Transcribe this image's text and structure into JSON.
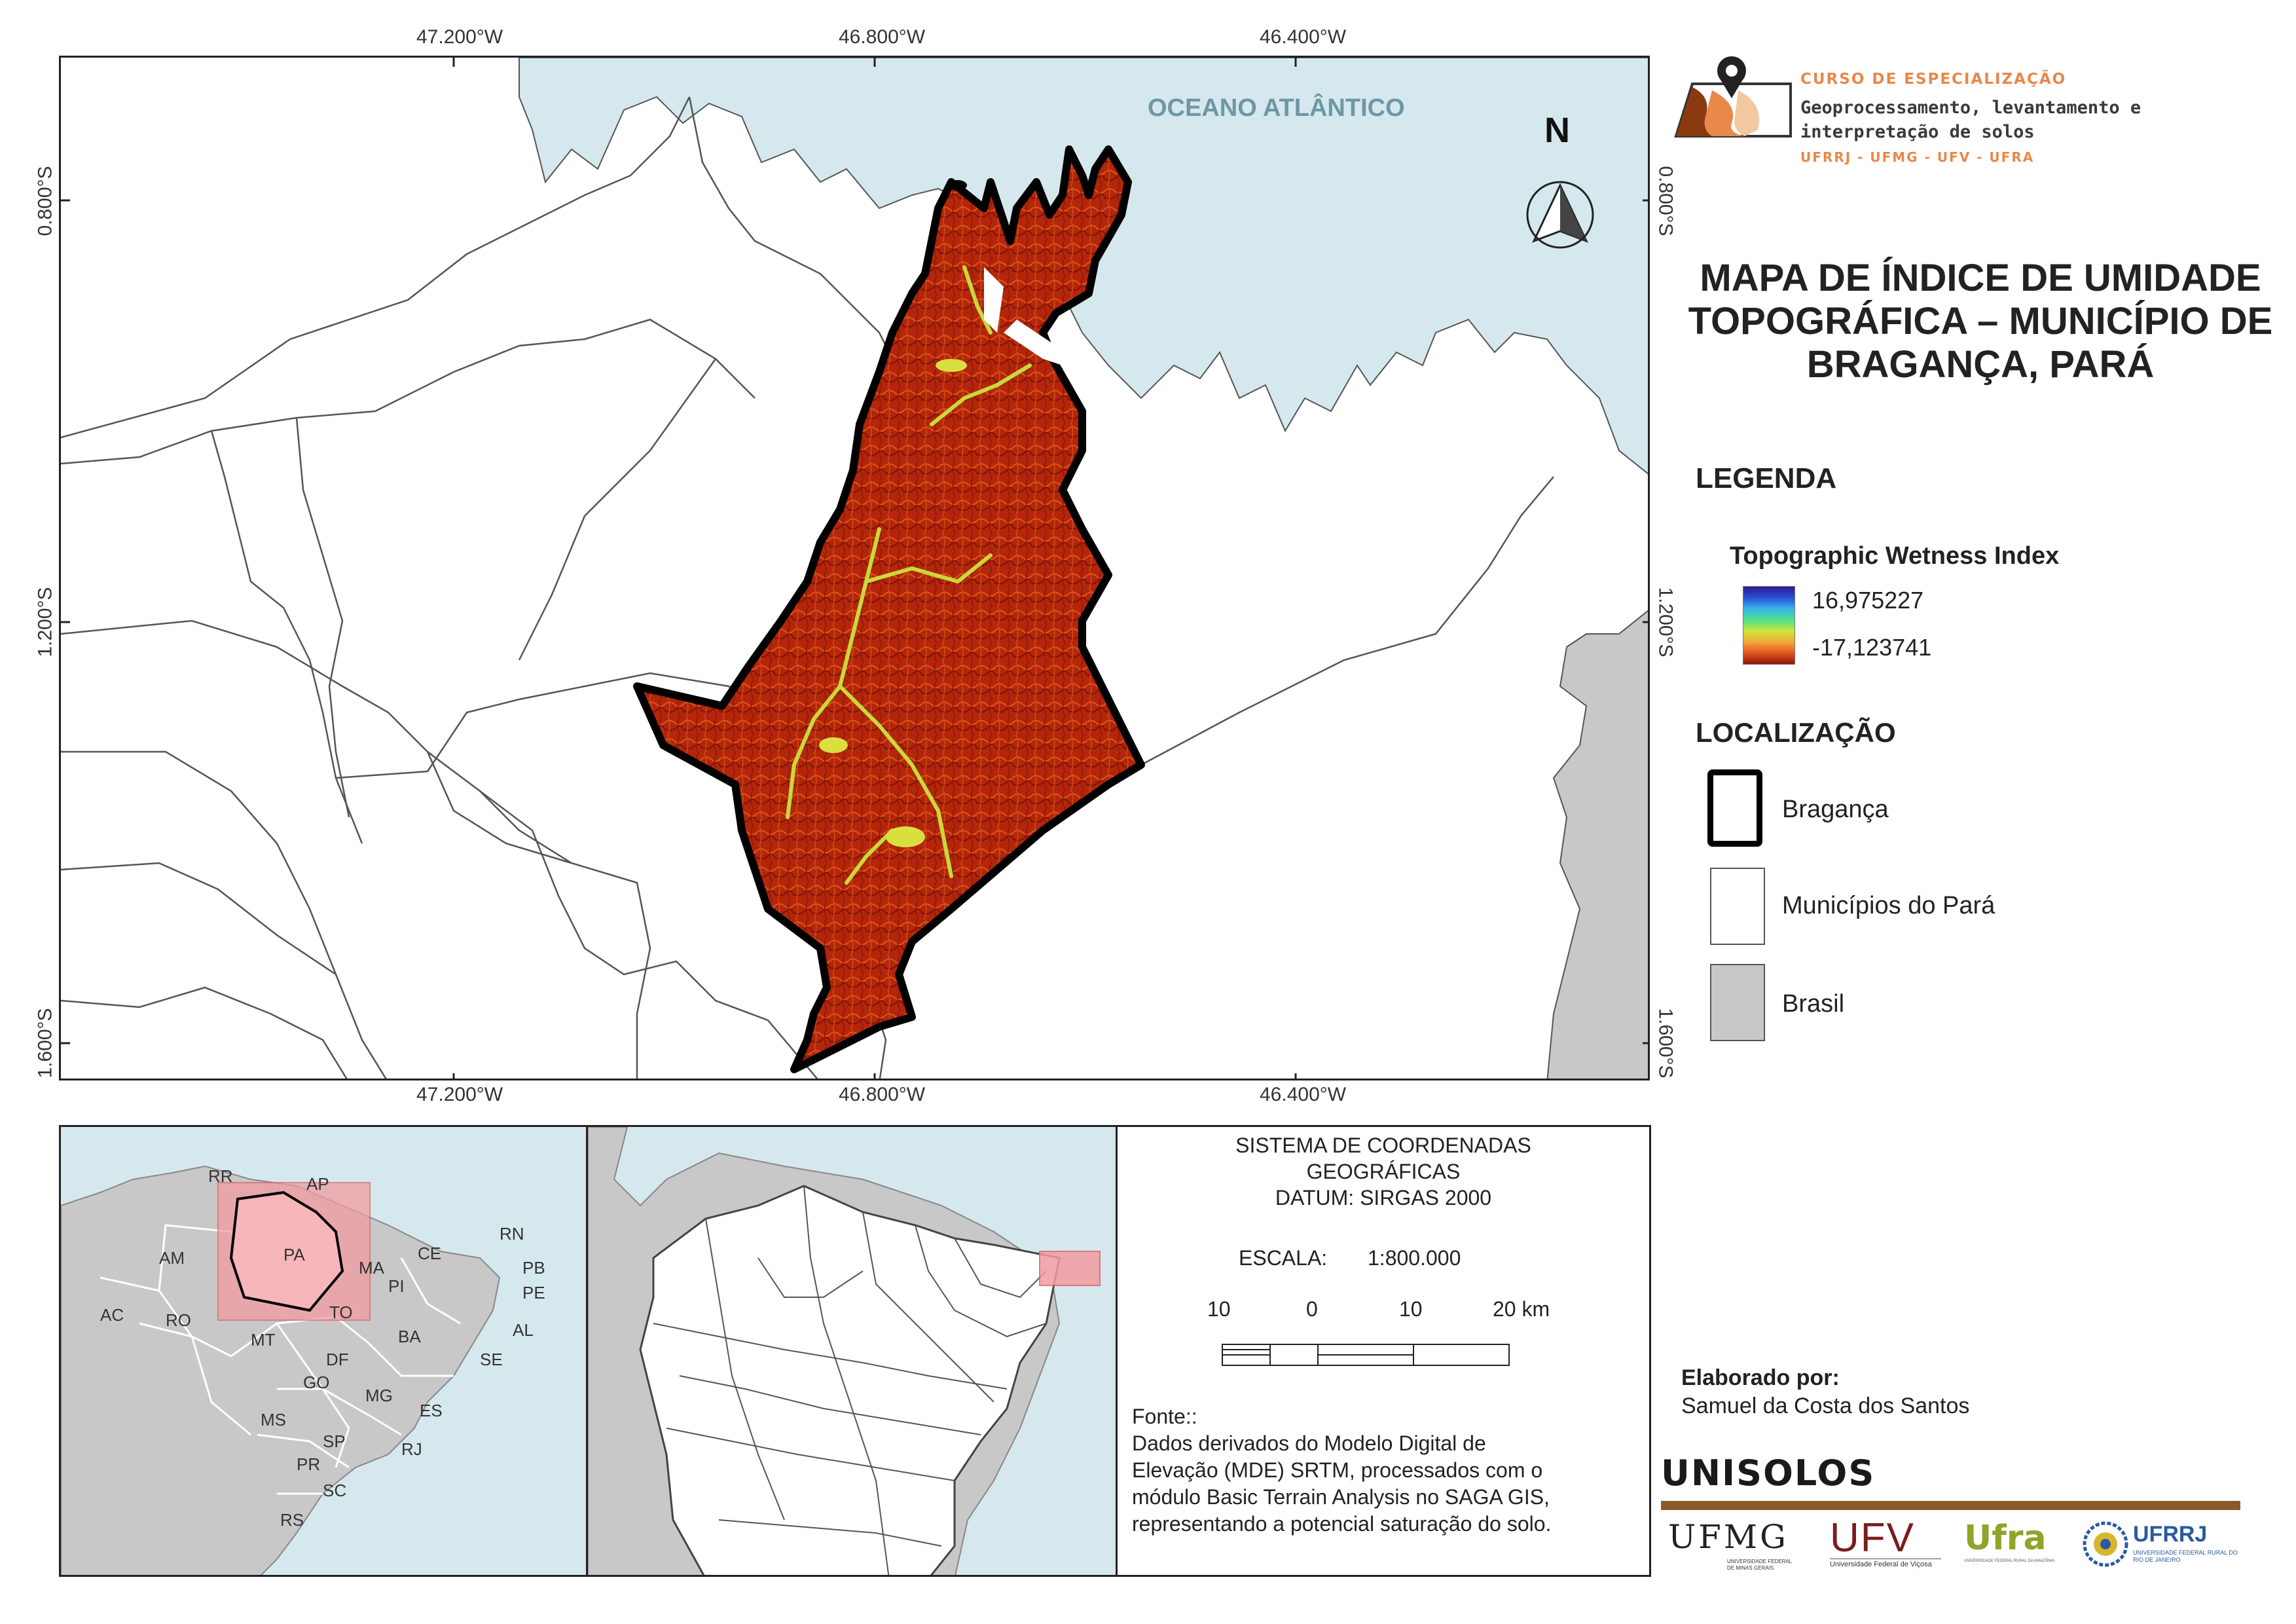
{
  "map": {
    "ocean_label": "OCEANO ATLÂNTICO",
    "north_label": "N",
    "coords_top": [
      "47.200°W",
      "46.800°W",
      "46.400°W"
    ],
    "coords_bottom": [
      "47.200°W",
      "46.800°W",
      "46.400°W"
    ],
    "coords_left": [
      "0.800°S",
      "1.200°S",
      "1.600°S"
    ],
    "coords_right": [
      "0.800°S",
      "1.200°S",
      "1.600°S"
    ]
  },
  "logo": {
    "course": "CURSO DE ESPECIALIZAÇÃO",
    "title": "Geoprocessamento, levantamento e interpretação de solos",
    "universities": "UFRRJ - UFMG - UFV - UFRA"
  },
  "title": "MAPA DE ÍNDICE DE UMIDADE TOPOGRÁFICA – MUNICÍPIO DE BRAGANÇA, PARÁ",
  "legend": {
    "heading": "LEGENDA",
    "raster_name": "Topographic Wetness Index",
    "max": "16,975227",
    "min": "-17,123741",
    "location_heading": "LOCALIZAÇÃO",
    "items": [
      {
        "label": "Bragança"
      },
      {
        "label": "Municípios do Pará"
      },
      {
        "label": "Brasil"
      }
    ]
  },
  "inset_brazil": {
    "states": [
      "RR",
      "AP",
      "AM",
      "PA",
      "MA",
      "CE",
      "RN",
      "PB",
      "PE",
      "PI",
      "AL",
      "SE",
      "AC",
      "RO",
      "TO",
      "MT",
      "BA",
      "DF",
      "GO",
      "MG",
      "ES",
      "MS",
      "SP",
      "RJ",
      "PR",
      "SC",
      "RS"
    ]
  },
  "info": {
    "crs_line1": "SISTEMA DE COORDENADAS",
    "crs_line2": "GEOGRÁFICAS",
    "datum": "DATUM: SIRGAS 2000",
    "scale_label": "ESCALA:",
    "scale_value": "1:800.000",
    "scalebar_ticks": [
      "10",
      "0",
      "10",
      "20 km"
    ],
    "source_heading": "Fonte::",
    "source_lines": [
      "Dados derivados do Modelo Digital de",
      "Elevação (MDE) SRTM, processados com o",
      "módulo Basic Terrain Analysis no SAGA GIS,",
      "representando a potencial saturação do solo."
    ]
  },
  "author": {
    "heading": "Elaborado por:",
    "name": "Samuel da Costa dos Santos"
  },
  "footer": {
    "brand": "UNISOLOS",
    "institutions": [
      "UFMG",
      "UFV",
      "Ufra",
      "UFRRJ"
    ],
    "ufmg_sub": "UNIVERSIDADE FEDERAL DE MINAS GERAIS",
    "ufv_sub": "Universidade Federal de Viçosa",
    "ufra_sub": "UNIVERSIDADE FEDERAL RURAL DA AMAZÔNIA",
    "ufrrj_sub": "UNIVERSIDADE FEDERAL RURAL DO RIO DE JANEIRO"
  },
  "colors": {
    "ocean": "#d5e8ed",
    "brazil": "#c8c8c8",
    "twi_low": "#8e1605",
    "twi_high": "#2c1d8f",
    "highlight": "#f29ca0",
    "accent": "#e8884a",
    "brand_bar": "#8b5a2b"
  }
}
